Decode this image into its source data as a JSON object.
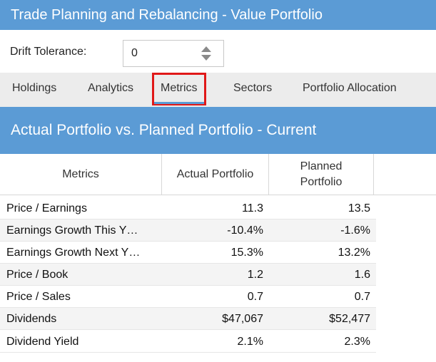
{
  "window": {
    "title": "Trade Planning and Rebalancing - Value Portfolio"
  },
  "drift": {
    "label": "Drift Tolerance:",
    "value": "0"
  },
  "tabs": [
    {
      "label": "Holdings"
    },
    {
      "label": "Analytics"
    },
    {
      "label": "Metrics"
    },
    {
      "label": "Sectors"
    },
    {
      "label": "Portfolio Allocation"
    }
  ],
  "active_tab": "Metrics",
  "section": {
    "title": "Actual Portfolio vs. Planned Portfolio - Current"
  },
  "table": {
    "headers": [
      "Metrics",
      "Actual Portfolio",
      "Planned Portfolio"
    ],
    "rows": [
      {
        "metric": "Price / Earnings",
        "actual": "11.3",
        "planned": "13.5"
      },
      {
        "metric": "Earnings Growth This Y…",
        "actual": "-10.4%",
        "planned": "-1.6%"
      },
      {
        "metric": "Earnings Growth Next Y…",
        "actual": "15.3%",
        "planned": "13.2%"
      },
      {
        "metric": "Price / Book",
        "actual": "1.2",
        "planned": "1.6"
      },
      {
        "metric": "Price / Sales",
        "actual": "0.7",
        "planned": "0.7"
      },
      {
        "metric": "Dividends",
        "actual": "$47,067",
        "planned": "$52,477"
      },
      {
        "metric": "Dividend Yield",
        "actual": "2.1%",
        "planned": "2.3%"
      }
    ]
  },
  "colors": {
    "accent": "#5b9bd5",
    "highlight": "#e01818"
  },
  "icons": {
    "spinner": "up-down-spinner-icon"
  }
}
